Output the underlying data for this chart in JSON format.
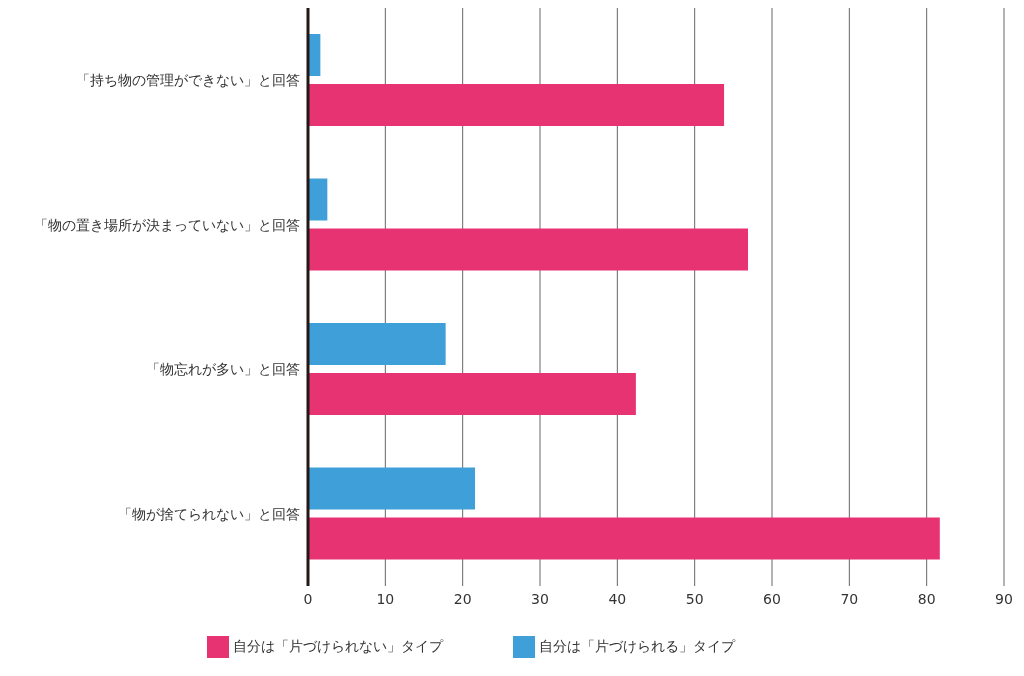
{
  "chart_data": {
    "type": "bar",
    "orientation": "horizontal",
    "categories": [
      "「持ち物の管理ができない」と回答",
      "「物の置き場所が決まっていない」と回答",
      "「物忘れが多い」と回答",
      "「物が捨てられない」と回答"
    ],
    "series": [
      {
        "name": "自分は「片づけられる」タイプ",
        "color": "#3f9fd8",
        "values": [
          1.6,
          2.5,
          17.8,
          21.6
        ]
      },
      {
        "name": "自分は「片づけられない」タイプ",
        "color": "#e83373",
        "values": [
          53.8,
          56.9,
          42.4,
          81.7
        ]
      }
    ],
    "xlim": [
      0,
      90
    ],
    "xticks": [
      0,
      10,
      20,
      30,
      40,
      50,
      60,
      70,
      80,
      90
    ],
    "grid": "x",
    "legend": "bottom"
  }
}
